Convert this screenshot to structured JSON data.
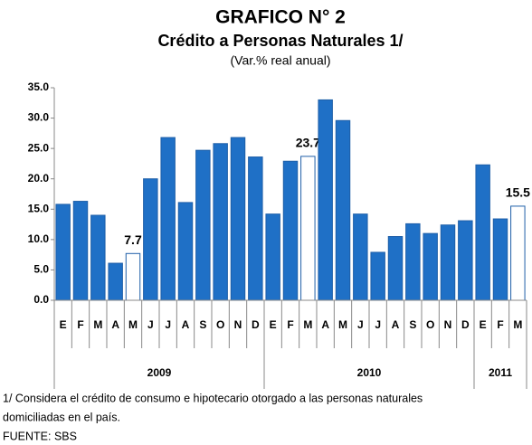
{
  "chart_data": {
    "type": "bar",
    "title": "GRAFICO N° 2",
    "subtitle": "Crédito a Personas Naturales 1/",
    "unit_label": "(Var.% real anual)",
    "categories": [
      "E",
      "F",
      "M",
      "A",
      "M",
      "J",
      "J",
      "A",
      "S",
      "O",
      "N",
      "D",
      "E",
      "F",
      "M",
      "A",
      "M",
      "J",
      "J",
      "A",
      "S",
      "O",
      "N",
      "D",
      "E",
      "F",
      "M"
    ],
    "values": [
      15.8,
      16.3,
      14.0,
      6.1,
      7.7,
      20.0,
      26.8,
      16.1,
      24.7,
      25.8,
      26.8,
      23.6,
      14.2,
      22.9,
      23.7,
      33.0,
      29.6,
      14.2,
      7.9,
      10.5,
      12.6,
      11.0,
      12.4,
      13.1,
      22.3,
      13.4,
      15.5
    ],
    "value_labels": [
      null,
      null,
      null,
      null,
      "7.7",
      null,
      null,
      null,
      null,
      null,
      null,
      null,
      null,
      null,
      "23.7",
      null,
      null,
      null,
      null,
      null,
      null,
      null,
      null,
      null,
      null,
      null,
      "15.5"
    ],
    "colors": [
      "#1f70c6",
      "#1f70c6",
      "#1f70c6",
      "#1f70c6",
      "#ffffff",
      "#1f70c6",
      "#1f70c6",
      "#1f70c6",
      "#1f70c6",
      "#1f70c6",
      "#1f70c6",
      "#1f70c6",
      "#1f70c6",
      "#1f70c6",
      "#ffffff",
      "#1f70c6",
      "#1f70c6",
      "#1f70c6",
      "#1f70c6",
      "#1f70c6",
      "#1f70c6",
      "#1f70c6",
      "#1f70c6",
      "#1f70c6",
      "#1f70c6",
      "#1f70c6",
      "#ffffff"
    ],
    "edge_color": "#1f5fa8",
    "years": [
      "2009",
      "2010",
      "2011"
    ],
    "year_spans": [
      12,
      12,
      3
    ],
    "ylim": [
      0,
      35
    ],
    "yticks": [
      {
        "value": 0,
        "label": "0.0"
      },
      {
        "value": 5,
        "label": "5.0"
      },
      {
        "value": 10,
        "label": "10.0"
      },
      {
        "value": 15,
        "label": "15.0"
      },
      {
        "value": 20,
        "label": "20.0"
      },
      {
        "value": 25,
        "label": "25.0"
      },
      {
        "value": 30,
        "label": "30.0"
      },
      {
        "value": 35,
        "label": "35.0"
      }
    ],
    "notes": [
      "1/ Considera el crédito de consumo e hipotecario otorgado a las personas naturales",
      "domiciliadas en el país.",
      "FUENTE: SBS"
    ]
  }
}
